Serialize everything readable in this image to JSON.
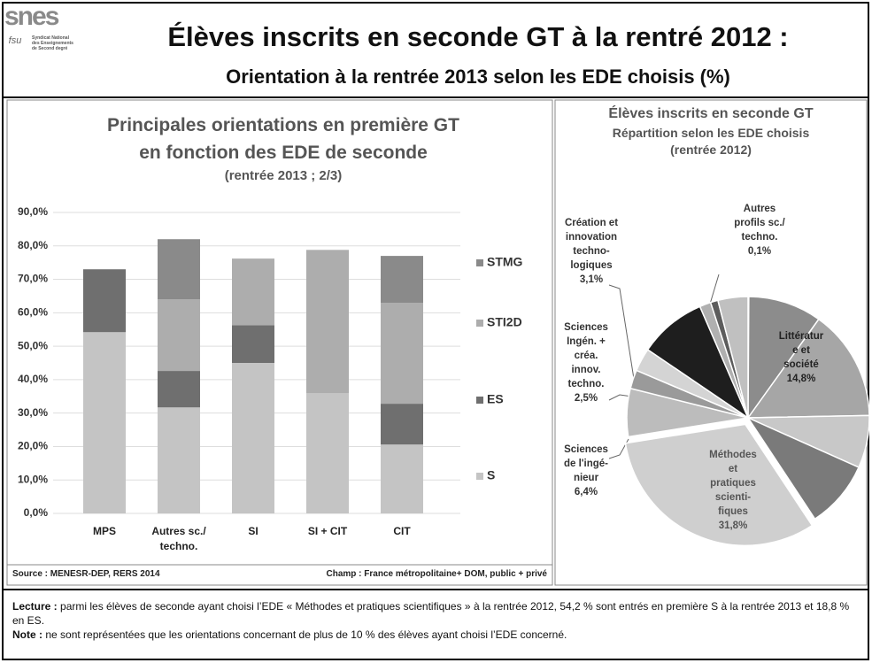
{
  "header": {
    "logo": "snes",
    "logo_sub": "fsu",
    "logo_caption": "Syndicat National\ndes Enseignements\nde Second degré",
    "title": "Élèves inscrits en seconde GT à la rentré 2012 :",
    "subtitle": "Orientation à la rentrée 2013 selon les EDE choisis (%)"
  },
  "chart_data": [
    {
      "type": "bar",
      "stacked": true,
      "title": "Principales orientations en première GT\nen fonction des EDE de seconde",
      "subtitle": "(rentrée 2013 ; 2/3)",
      "categories": [
        "MPS",
        "Autres sc./\ntechno.",
        "SI",
        "SI + CIT",
        "CIT"
      ],
      "series": [
        {
          "name": "S",
          "color": "#c4c4c4",
          "values": [
            54.2,
            31.7,
            45.0,
            36.0,
            20.6
          ]
        },
        {
          "name": "ES",
          "color": "#6f6f6f",
          "values": [
            18.8,
            10.9,
            11.3,
            null,
            12.2
          ]
        },
        {
          "name": "STI2D",
          "color": "#adadad",
          "values": [
            null,
            21.4,
            19.9,
            42.8,
            30.2
          ]
        },
        {
          "name": "STMG",
          "color": "#8a8a8a",
          "values": [
            null,
            18.0,
            null,
            null,
            14.0
          ]
        }
      ],
      "ylim": [
        0,
        90
      ],
      "yticks": [
        {
          "value": 0,
          "label": "0,0%"
        },
        {
          "value": 10,
          "label": "10,0%"
        },
        {
          "value": 20,
          "label": "20,0%"
        },
        {
          "value": 30,
          "label": "30,0%"
        },
        {
          "value": 40,
          "label": "40,0%"
        },
        {
          "value": 50,
          "label": "50,0%"
        },
        {
          "value": 60,
          "label": "60,0%"
        },
        {
          "value": 70,
          "label": "70,0%"
        },
        {
          "value": 80,
          "label": "80,0%"
        },
        {
          "value": 90,
          "label": "90,0%"
        }
      ],
      "grid": true,
      "legend": "right",
      "source": "Source : MENESR-DEP, RERS 2014",
      "scope": "Champ : France métropolitaine+ DOM, public + privé"
    },
    {
      "type": "pie",
      "title": "Élèves inscrits en seconde GT",
      "subtitle": "Répartition selon les EDE choisis\n(rentrée 2012)",
      "categories": [
        "Autres\nprofils sc./\ntechno.",
        null,
        "Littératur\ne et\nsociété",
        null,
        null,
        "Méthodes\net\npratiques\nscienti-\nfiques",
        "Sciences\nde l'ingé-\nnieur",
        "Sciences\nIngén. +\ncréa.\ninnov.\ntechno.",
        "Création et\ninnovation\ntechno-\nlogiques",
        null,
        null,
        null,
        null
      ],
      "values": [
        0.1,
        9.8,
        14.8,
        7.0,
        9.0,
        31.8,
        6.4,
        2.5,
        3.1,
        9.0,
        1.5,
        1.0,
        4.0
      ],
      "value_labels": [
        "0,1%",
        null,
        "14,8%",
        null,
        null,
        "31,8%",
        "6,4%",
        "2,5%",
        "3,1%",
        null,
        null,
        null,
        null
      ],
      "colors": [
        "#3a3a3a",
        "#8c8c8c",
        "#a6a6a6",
        "#c8c8c8",
        "#7a7a7a",
        "#cfcfcf",
        "#bcbcbc",
        "#9a9a9a",
        "#d4d4d4",
        "#1e1e1e",
        "#b0b0b0",
        "#5c5c5c",
        "#c0c0c0"
      ]
    }
  ],
  "footer": {
    "lecture_label": "Lecture :",
    "lecture": " parmi les élèves de seconde ayant choisi l’EDE « Méthodes et pratiques scientifiques » à la rentrée 2012, 54,2 % sont entrés en première S à la rentrée 2013 et 18,8 % en ES.",
    "note_label": "Note :",
    "note": " ne sont représentées que les orientations concernant de  plus de 10 % des élèves ayant choisi l’EDE concerné."
  }
}
